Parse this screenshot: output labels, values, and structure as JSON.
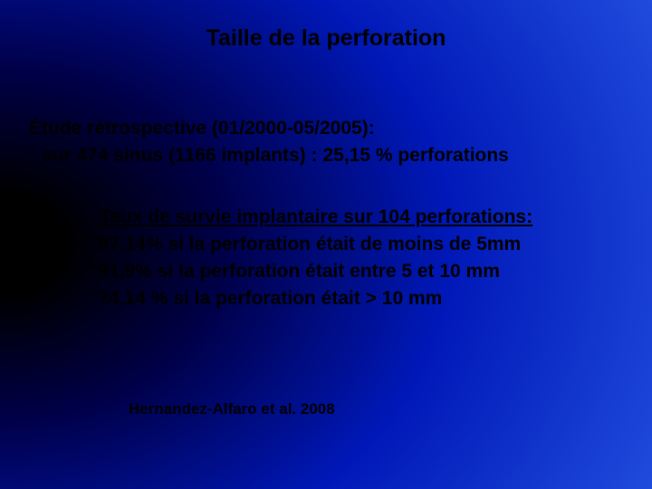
{
  "slide": {
    "background": {
      "type": "radial-gradient",
      "center": "left-center",
      "stops": [
        "#000000",
        "#00004a",
        "#0018b8",
        "#2a5de8"
      ]
    },
    "text_color": "#000000",
    "font_family": "Verdana",
    "title": {
      "text": "Taille de la perforation",
      "fontsize": 25,
      "weight": "bold"
    },
    "study": {
      "heading": "Étude rétrospective (01/2000-05/2005):",
      "heading_fontsize": 21,
      "subline": "sur 474 sinus (1166 implants) : 25,15 % perforations",
      "subline_fontsize": 21
    },
    "survival": {
      "heading": "Taux de survie implantaire sur 104 perforations:",
      "heading_fontsize": 21,
      "bullets": [
        "°97,14% si la perforation était de moins de 5mm",
        "°91,9% si la perforation était entre 5 et 10 mm",
        "°74,14 % si la perforation était > 10 mm"
      ],
      "bullet_fontsize": 21
    },
    "citation": {
      "text": "Hernandez-Alfaro et al.  2008",
      "fontsize": 17
    }
  }
}
